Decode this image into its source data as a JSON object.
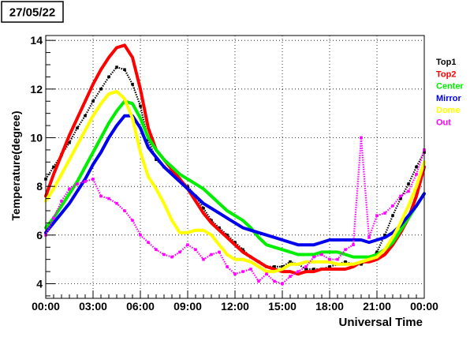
{
  "chart_data": {
    "type": "line",
    "title": "27/05/22",
    "xlabel": "Universal Time",
    "ylabel": "Temperature(degree)",
    "xlim": [
      0,
      24
    ],
    "ylim": [
      3.4,
      14.2
    ],
    "x_ticks": [
      0,
      3,
      6,
      9,
      12,
      15,
      18,
      21,
      24
    ],
    "x_tick_labels": [
      "00:00",
      "03:00",
      "06:00",
      "09:00",
      "12:00",
      "15:00",
      "18:00",
      "21:00",
      "00:00"
    ],
    "y_ticks": [
      4,
      6,
      8,
      10,
      12,
      14
    ],
    "y_tick_labels": [
      "4",
      "6",
      "8",
      "10",
      "12",
      "14"
    ],
    "grid": true,
    "legend_position": "right",
    "series": [
      {
        "name": "Top1",
        "color": "#000000",
        "style": "markers",
        "x": [
          0,
          0.5,
          1,
          1.5,
          2,
          2.5,
          3,
          3.5,
          4,
          4.5,
          5,
          5.5,
          6,
          6.5,
          7,
          7.5,
          8,
          8.5,
          9,
          9.5,
          10,
          10.5,
          11,
          11.5,
          12,
          12.5,
          13,
          13.5,
          14,
          14.5,
          15,
          15.5,
          16,
          16.5,
          17,
          17.5,
          18,
          18.5,
          19,
          19.5,
          20,
          20.5,
          21,
          21.5,
          22,
          22.5,
          23,
          23.5,
          24
        ],
        "y": [
          8.3,
          8.8,
          9.3,
          9.8,
          10.4,
          10.9,
          11.5,
          12.0,
          12.5,
          12.9,
          12.8,
          12.2,
          11.3,
          9.9,
          9.1,
          8.8,
          8.6,
          8.3,
          8.0,
          7.6,
          7.1,
          6.6,
          6.3,
          6.0,
          5.7,
          5.4,
          5.1,
          4.9,
          4.7,
          4.7,
          4.7,
          4.9,
          4.8,
          4.6,
          4.6,
          4.6,
          4.7,
          4.8,
          4.9,
          4.8,
          4.8,
          5.0,
          5.3,
          6.0,
          6.8,
          7.5,
          8.1,
          8.8,
          9.4
        ]
      },
      {
        "name": "Top2",
        "color": "#ff0000",
        "style": "line",
        "x": [
          0,
          0.5,
          1,
          1.5,
          2,
          2.5,
          3,
          3.5,
          4,
          4.5,
          5,
          5.5,
          6,
          6.5,
          7,
          7.5,
          8,
          8.5,
          9,
          9.5,
          10,
          10.5,
          11,
          11.5,
          12,
          12.5,
          13,
          13.5,
          14,
          14.5,
          15,
          15.5,
          16,
          16.5,
          17,
          17.5,
          18,
          18.5,
          19,
          19.5,
          20,
          20.5,
          21,
          21.5,
          22,
          22.5,
          23,
          23.5,
          24
        ],
        "y": [
          7.6,
          8.5,
          9.3,
          10.1,
          10.8,
          11.5,
          12.2,
          12.8,
          13.3,
          13.7,
          13.8,
          13.3,
          12.0,
          10.4,
          9.5,
          9.1,
          8.7,
          8.3,
          7.9,
          7.4,
          6.9,
          6.5,
          6.2,
          5.9,
          5.6,
          5.3,
          5.1,
          4.9,
          4.7,
          4.6,
          4.5,
          4.5,
          4.4,
          4.5,
          4.5,
          4.6,
          4.6,
          4.6,
          4.6,
          4.7,
          4.9,
          4.9,
          5.0,
          5.2,
          5.6,
          6.1,
          6.7,
          7.6,
          8.8
        ]
      },
      {
        "name": "Center",
        "color": "#00ee00",
        "style": "line",
        "x": [
          0,
          0.5,
          1,
          1.5,
          2,
          2.5,
          3,
          3.5,
          4,
          4.5,
          5,
          5.5,
          6,
          6.5,
          7,
          7.5,
          8,
          8.5,
          9,
          9.5,
          10,
          10.5,
          11,
          11.5,
          12,
          12.5,
          13,
          13.5,
          14,
          14.5,
          15,
          15.5,
          16,
          16.5,
          17,
          17.5,
          18,
          18.5,
          19,
          19.5,
          20,
          20.5,
          21,
          21.5,
          22,
          22.5,
          23,
          23.5,
          24
        ],
        "y": [
          6.3,
          6.7,
          7.2,
          7.7,
          8.2,
          8.8,
          9.4,
          10.0,
          10.6,
          11.1,
          11.5,
          11.4,
          10.8,
          10.0,
          9.5,
          9.1,
          8.8,
          8.5,
          8.3,
          8.1,
          7.9,
          7.6,
          7.3,
          7.0,
          6.8,
          6.6,
          6.3,
          5.9,
          5.6,
          5.5,
          5.4,
          5.3,
          5.2,
          5.2,
          5.2,
          5.3,
          5.3,
          5.3,
          5.2,
          5.1,
          5.1,
          5.1,
          5.2,
          5.4,
          5.7,
          6.2,
          6.7,
          7.2,
          7.7
        ]
      },
      {
        "name": "Mirror",
        "color": "#0000ee",
        "style": "line",
        "x": [
          0,
          0.5,
          1,
          1.5,
          2,
          2.5,
          3,
          3.5,
          4,
          4.5,
          5,
          5.5,
          6,
          6.5,
          7,
          7.5,
          8,
          8.5,
          9,
          9.5,
          10,
          10.5,
          11,
          11.5,
          12,
          12.5,
          13,
          13.5,
          14,
          14.5,
          15,
          15.5,
          16,
          16.5,
          17,
          17.5,
          18,
          18.5,
          19,
          19.5,
          20,
          20.5,
          21,
          21.5,
          22,
          22.5,
          23,
          23.5,
          24
        ],
        "y": [
          6.1,
          6.5,
          6.9,
          7.3,
          7.8,
          8.3,
          8.9,
          9.4,
          10.0,
          10.5,
          10.9,
          10.9,
          10.4,
          9.6,
          9.2,
          8.8,
          8.5,
          8.2,
          7.9,
          7.6,
          7.3,
          7.1,
          6.9,
          6.7,
          6.5,
          6.3,
          6.2,
          6.1,
          6.0,
          5.9,
          5.8,
          5.7,
          5.6,
          5.6,
          5.6,
          5.7,
          5.8,
          5.8,
          5.8,
          5.8,
          5.8,
          5.7,
          5.8,
          5.9,
          6.1,
          6.4,
          6.8,
          7.2,
          7.7
        ]
      },
      {
        "name": "Dome",
        "color": "#ffff00",
        "style": "line",
        "x": [
          0,
          0.5,
          1,
          1.5,
          2,
          2.5,
          3,
          3.5,
          4,
          4.5,
          5,
          5.5,
          6,
          6.5,
          7,
          7.5,
          8,
          8.5,
          9,
          9.5,
          10,
          10.5,
          11,
          11.5,
          12,
          12.5,
          13,
          13.5,
          14,
          14.5,
          15,
          15.5,
          16,
          16.5,
          17,
          17.5,
          18,
          18.5,
          19,
          19.5,
          20,
          20.5,
          21,
          21.5,
          22,
          22.5,
          23,
          23.5,
          24
        ],
        "y": [
          7.4,
          7.9,
          8.5,
          9.1,
          9.7,
          10.3,
          10.9,
          11.4,
          11.8,
          11.9,
          11.6,
          10.8,
          9.4,
          8.4,
          7.9,
          7.3,
          6.6,
          6.1,
          6.1,
          6.2,
          6.2,
          6.0,
          5.6,
          5.2,
          5.0,
          5.0,
          4.9,
          4.7,
          4.5,
          4.5,
          4.6,
          4.8,
          4.8,
          4.9,
          4.9,
          4.9,
          4.9,
          4.8,
          4.8,
          4.8,
          4.9,
          5.0,
          5.1,
          5.4,
          5.9,
          6.5,
          7.2,
          8.0,
          9.0
        ]
      },
      {
        "name": "Out",
        "color": "#ff00ff",
        "style": "markers",
        "x": [
          0,
          0.5,
          1,
          1.5,
          2,
          2.5,
          3,
          3.5,
          4,
          4.5,
          5,
          5.5,
          6,
          6.5,
          7,
          7.5,
          8,
          8.5,
          9,
          9.5,
          10,
          10.5,
          11,
          11.5,
          12,
          12.5,
          13,
          13.5,
          14,
          14.5,
          15,
          15.5,
          16,
          16.5,
          17,
          17.5,
          18,
          18.5,
          19,
          19.5,
          20,
          20.5,
          21,
          21.5,
          22,
          22.5,
          23,
          23.5,
          24
        ],
        "y": [
          6.0,
          6.7,
          7.4,
          7.9,
          8.1,
          8.2,
          8.3,
          7.6,
          7.5,
          7.3,
          7.0,
          6.6,
          6.0,
          5.7,
          5.4,
          5.2,
          5.1,
          5.3,
          5.6,
          5.4,
          5.0,
          5.2,
          5.3,
          4.7,
          4.4,
          4.5,
          4.6,
          4.1,
          4.4,
          4.1,
          4.0,
          4.3,
          4.5,
          4.7,
          5.1,
          5.2,
          5.0,
          5.0,
          5.4,
          5.6,
          10.0,
          5.9,
          6.8,
          6.9,
          7.2,
          7.6,
          7.8,
          8.5,
          9.5
        ]
      }
    ]
  }
}
